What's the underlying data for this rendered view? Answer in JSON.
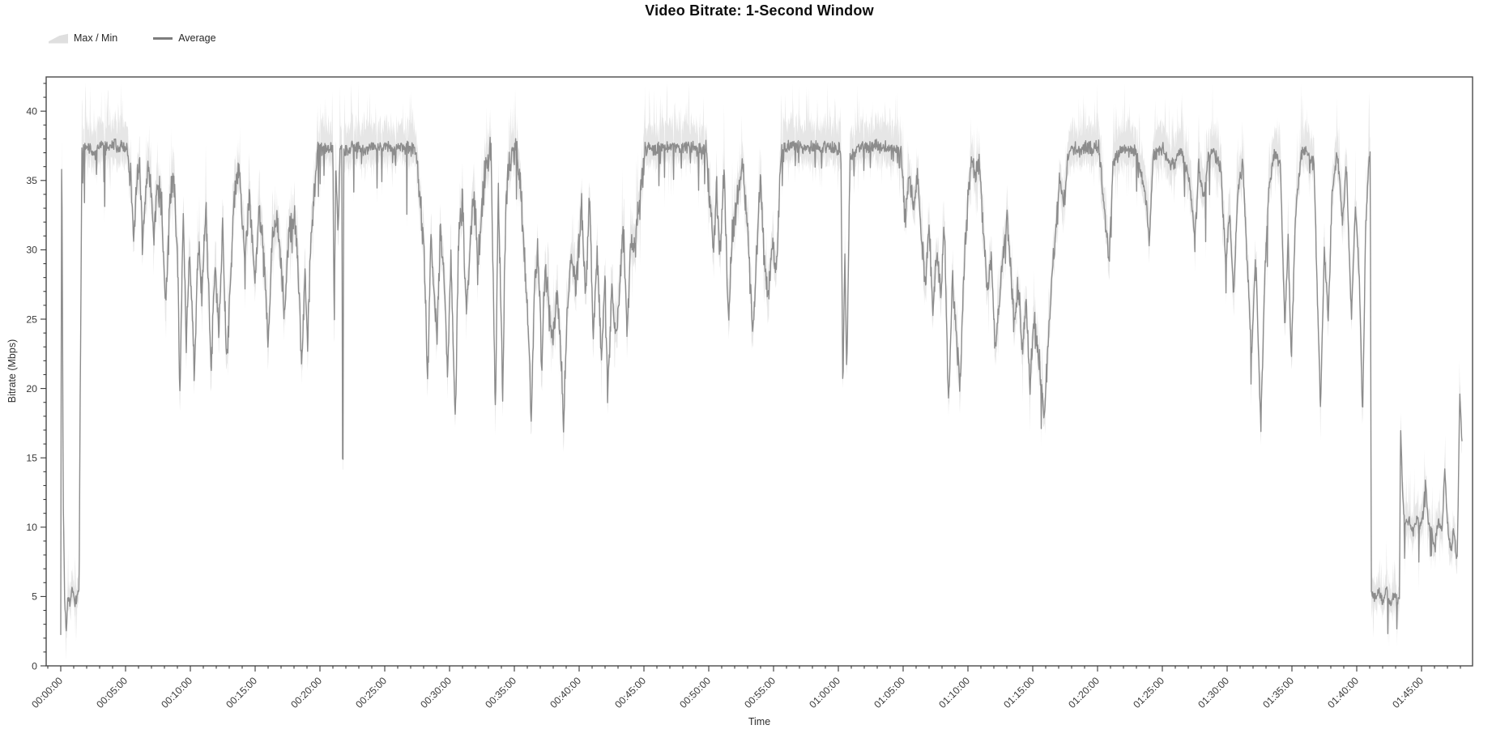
{
  "title": "Video Bitrate: 1-Second Window",
  "legend": {
    "maxmin": "Max / Min",
    "average": "Average"
  },
  "chart_data": {
    "type": "area+line",
    "title": "Video Bitrate: 1-Second Window",
    "xlabel": "Time",
    "ylabel": "Bitrate (Mbps)",
    "ylim": [
      0,
      42.4
    ],
    "xlim_minutes": [
      -1.125,
      108.94
    ],
    "grid": false,
    "legend_position": "top-left",
    "y_major_ticks": [
      0,
      5,
      10,
      15,
      20,
      25,
      30,
      35,
      40
    ],
    "y_minor_step": 1,
    "y_minor_max": 42,
    "x_major_tick_minutes": [
      0,
      5,
      10,
      15,
      20,
      25,
      30,
      35,
      40,
      45,
      50,
      55,
      60,
      65,
      70,
      75,
      80,
      85,
      90,
      95,
      100,
      105
    ],
    "x_tick_labels": [
      "00:00:00",
      "00:05:00",
      "00:10:00",
      "00:15:00",
      "00:20:00",
      "00:25:00",
      "00:30:00",
      "00:35:00",
      "00:40:00",
      "00:45:00",
      "00:50:00",
      "00:55:00",
      "01:00:00",
      "01:05:00",
      "01:10:00",
      "01:15:00",
      "01:20:00",
      "01:25:00",
      "01:30:00",
      "01:35:00",
      "01:40:00",
      "01:45:00"
    ],
    "x_minor_step_minutes": 1,
    "x_minor_range_minutes": [
      -1,
      108
    ],
    "series": [
      {
        "name": "Max / Min",
        "type": "band"
      },
      {
        "name": "Average",
        "type": "line"
      }
    ],
    "colors": {
      "band": "#e3e3e3",
      "line": "#8c8c8c",
      "axis": "#4a4a4a",
      "tick_text": "#3a3a3a",
      "title_text": "#0d0d0d",
      "background": "#ffffff"
    },
    "noise_seed": 42,
    "sample_step_minutes": 0.0333,
    "avg_profile_minutes_mbps": [
      [
        0.0,
        2.2
      ],
      [
        0.07,
        38.4
      ],
      [
        0.12,
        30.0
      ],
      [
        0.18,
        13.0
      ],
      [
        0.3,
        4.8
      ],
      [
        0.42,
        2.3
      ],
      [
        0.55,
        5.2
      ],
      [
        0.7,
        4.6
      ],
      [
        0.9,
        5.4
      ],
      [
        1.1,
        4.7
      ],
      [
        1.3,
        5.1
      ],
      [
        1.42,
        5.3
      ],
      [
        1.5,
        19.5
      ],
      [
        1.56,
        27.0
      ],
      [
        1.63,
        37.2
      ],
      [
        2.0,
        37.5
      ],
      [
        2.6,
        36.8
      ],
      [
        3.1,
        37.6
      ],
      [
        3.6,
        37.2
      ],
      [
        4.1,
        37.6
      ],
      [
        4.6,
        37.3
      ],
      [
        5.1,
        37.5
      ],
      [
        5.4,
        35.0
      ],
      [
        5.6,
        31.0
      ],
      [
        5.85,
        34.5
      ],
      [
        6.1,
        36.5
      ],
      [
        6.3,
        30.5
      ],
      [
        6.55,
        34.0
      ],
      [
        6.8,
        36.0
      ],
      [
        7.0,
        33.5
      ],
      [
        7.2,
        31.0
      ],
      [
        7.5,
        35.0
      ],
      [
        7.8,
        33.0
      ],
      [
        8.1,
        26.0
      ],
      [
        8.4,
        33.5
      ],
      [
        8.7,
        35.5
      ],
      [
        9.0,
        30.0
      ],
      [
        9.2,
        19.2
      ],
      [
        9.45,
        32.0
      ],
      [
        9.7,
        23.5
      ],
      [
        9.95,
        30.0
      ],
      [
        10.3,
        21.0
      ],
      [
        10.6,
        30.5
      ],
      [
        10.9,
        27.0
      ],
      [
        11.2,
        33.0
      ],
      [
        11.6,
        21.2
      ],
      [
        11.9,
        29.0
      ],
      [
        12.2,
        24.0
      ],
      [
        12.5,
        31.5
      ],
      [
        12.8,
        21.5
      ],
      [
        13.1,
        28.0
      ],
      [
        13.4,
        34.5
      ],
      [
        13.8,
        36.0
      ],
      [
        14.2,
        29.0
      ],
      [
        14.55,
        34.0
      ],
      [
        15.0,
        27.5
      ],
      [
        15.3,
        33.5
      ],
      [
        15.6,
        30.0
      ],
      [
        16.0,
        23.5
      ],
      [
        16.35,
        31.0
      ],
      [
        16.7,
        32.5
      ],
      [
        17.0,
        29.5
      ],
      [
        17.3,
        25.0
      ],
      [
        17.6,
        31.5
      ],
      [
        18.0,
        32.5
      ],
      [
        18.3,
        29.0
      ],
      [
        18.6,
        21.5
      ],
      [
        18.85,
        28.5
      ],
      [
        19.05,
        23.0
      ],
      [
        19.25,
        30.0
      ],
      [
        19.5,
        33.0
      ],
      [
        19.8,
        37.3
      ],
      [
        20.5,
        37.4
      ],
      [
        21.0,
        37.2
      ],
      [
        21.1,
        24.0
      ],
      [
        21.22,
        36.0
      ],
      [
        21.4,
        31.0
      ],
      [
        21.55,
        37.2
      ],
      [
        21.69,
        37.3
      ],
      [
        21.76,
        9.0
      ],
      [
        21.84,
        37.2
      ],
      [
        22.5,
        37.4
      ],
      [
        23.5,
        37.3
      ],
      [
        24.5,
        37.5
      ],
      [
        25.5,
        37.3
      ],
      [
        26.5,
        37.4
      ],
      [
        27.4,
        37.2
      ],
      [
        27.8,
        33.0
      ],
      [
        28.05,
        29.5
      ],
      [
        28.3,
        20.0
      ],
      [
        28.55,
        31.0
      ],
      [
        28.8,
        27.0
      ],
      [
        29.05,
        24.0
      ],
      [
        29.3,
        31.5
      ],
      [
        29.6,
        28.0
      ],
      [
        29.85,
        21.0
      ],
      [
        30.1,
        30.0
      ],
      [
        30.45,
        17.3
      ],
      [
        30.7,
        31.0
      ],
      [
        31.0,
        33.5
      ],
      [
        31.3,
        25.5
      ],
      [
        31.6,
        30.5
      ],
      [
        31.9,
        34.0
      ],
      [
        32.2,
        28.8
      ],
      [
        32.5,
        33.0
      ],
      [
        32.8,
        36.5
      ],
      [
        33.2,
        37.2
      ],
      [
        33.55,
        18.0
      ],
      [
        33.75,
        35.0
      ],
      [
        34.1,
        19.5
      ],
      [
        34.35,
        34.0
      ],
      [
        34.7,
        36.8
      ],
      [
        35.1,
        37.2
      ],
      [
        35.5,
        34.0
      ],
      [
        35.8,
        29.0
      ],
      [
        36.05,
        25.5
      ],
      [
        36.3,
        17.5
      ],
      [
        36.55,
        27.0
      ],
      [
        36.8,
        30.5
      ],
      [
        37.1,
        22.0
      ],
      [
        37.4,
        28.5
      ],
      [
        37.7,
        25.0
      ],
      [
        38.0,
        24.0
      ],
      [
        38.3,
        27.5
      ],
      [
        38.55,
        23.0
      ],
      [
        38.8,
        18.0
      ],
      [
        39.1,
        26.0
      ],
      [
        39.4,
        29.5
      ],
      [
        39.7,
        27.0
      ],
      [
        40.2,
        33.0
      ],
      [
        40.5,
        26.0
      ],
      [
        40.8,
        34.0
      ],
      [
        41.1,
        23.5
      ],
      [
        41.4,
        30.0
      ],
      [
        41.7,
        22.0
      ],
      [
        42.0,
        28.0
      ],
      [
        42.2,
        19.5
      ],
      [
        42.5,
        27.0
      ],
      [
        42.8,
        24.0
      ],
      [
        43.1,
        26.5
      ],
      [
        43.4,
        31.5
      ],
      [
        43.7,
        24.5
      ],
      [
        44.0,
        30.0
      ],
      [
        44.3,
        30.3
      ],
      [
        44.6,
        33.0
      ],
      [
        44.9,
        35.2
      ],
      [
        45.1,
        37.4
      ],
      [
        45.8,
        37.3
      ],
      [
        46.6,
        37.5
      ],
      [
        47.4,
        37.3
      ],
      [
        48.2,
        37.4
      ],
      [
        49.0,
        37.3
      ],
      [
        49.8,
        37.4
      ],
      [
        50.1,
        33.0
      ],
      [
        50.35,
        30.0
      ],
      [
        50.6,
        34.5
      ],
      [
        50.9,
        29.5
      ],
      [
        51.2,
        36.0
      ],
      [
        51.5,
        24.5
      ],
      [
        51.8,
        31.0
      ],
      [
        52.1,
        33.0
      ],
      [
        52.6,
        36.5
      ],
      [
        53.0,
        31.5
      ],
      [
        53.4,
        23.3
      ],
      [
        53.7,
        30.0
      ],
      [
        54.0,
        35.0
      ],
      [
        54.3,
        29.0
      ],
      [
        54.6,
        26.7
      ],
      [
        54.9,
        31.0
      ],
      [
        55.2,
        28.5
      ],
      [
        55.6,
        37.2
      ],
      [
        56.3,
        37.4
      ],
      [
        57.1,
        37.3
      ],
      [
        57.9,
        37.4
      ],
      [
        58.7,
        37.3
      ],
      [
        59.4,
        37.4
      ],
      [
        60.0,
        37.2
      ],
      [
        60.2,
        37.0
      ],
      [
        60.35,
        19.5
      ],
      [
        60.5,
        30.0
      ],
      [
        60.65,
        21.0
      ],
      [
        60.9,
        36.5
      ],
      [
        61.5,
        37.4
      ],
      [
        62.3,
        37.3
      ],
      [
        63.1,
        37.5
      ],
      [
        63.9,
        37.3
      ],
      [
        64.6,
        37.2
      ],
      [
        64.9,
        36.5
      ],
      [
        65.1,
        32.5
      ],
      [
        65.4,
        35.5
      ],
      [
        65.8,
        33.0
      ],
      [
        66.1,
        36.0
      ],
      [
        66.4,
        31.0
      ],
      [
        66.7,
        27.5
      ],
      [
        67.0,
        32.0
      ],
      [
        67.3,
        25.5
      ],
      [
        67.6,
        30.5
      ],
      [
        67.9,
        27.0
      ],
      [
        68.2,
        31.5
      ],
      [
        68.5,
        18.5
      ],
      [
        68.8,
        28.0
      ],
      [
        69.1,
        24.0
      ],
      [
        69.4,
        20.0
      ],
      [
        69.7,
        29.0
      ],
      [
        70.0,
        33.5
      ],
      [
        70.3,
        36.8
      ],
      [
        70.6,
        35.5
      ],
      [
        70.9,
        36.8
      ],
      [
        71.2,
        31.0
      ],
      [
        71.5,
        27.0
      ],
      [
        71.8,
        29.5
      ],
      [
        72.1,
        23.0
      ],
      [
        72.4,
        26.0
      ],
      [
        72.7,
        29.5
      ],
      [
        73.0,
        33.0
      ],
      [
        73.3,
        28.5
      ],
      [
        73.6,
        25.0
      ],
      [
        73.9,
        27.5
      ],
      [
        74.2,
        22.5
      ],
      [
        74.5,
        26.5
      ],
      [
        74.8,
        20.5
      ],
      [
        75.1,
        25.0
      ],
      [
        75.4,
        23.0
      ],
      [
        75.9,
        17.6
      ],
      [
        76.2,
        24.0
      ],
      [
        76.5,
        28.0
      ],
      [
        76.8,
        31.5
      ],
      [
        77.1,
        35.0
      ],
      [
        77.4,
        33.0
      ],
      [
        77.8,
        37.2
      ],
      [
        78.5,
        37.3
      ],
      [
        79.3,
        37.2
      ],
      [
        80.1,
        37.4
      ],
      [
        80.9,
        29.0
      ],
      [
        81.2,
        36.5
      ],
      [
        82.0,
        37.3
      ],
      [
        83.0,
        37.2
      ],
      [
        83.7,
        34.0
      ],
      [
        84.0,
        30.5
      ],
      [
        84.3,
        36.8
      ],
      [
        85.0,
        37.3
      ],
      [
        85.7,
        36.0
      ],
      [
        86.4,
        37.3
      ],
      [
        87.1,
        35.0
      ],
      [
        87.5,
        31.0
      ],
      [
        87.8,
        36.0
      ],
      [
        88.2,
        33.5
      ],
      [
        88.5,
        36.5
      ],
      [
        89.0,
        37.2
      ],
      [
        89.5,
        36.0
      ],
      [
        89.9,
        29.0
      ],
      [
        90.2,
        33.0
      ],
      [
        90.5,
        26.5
      ],
      [
        90.8,
        34.0
      ],
      [
        91.2,
        36.5
      ],
      [
        91.6,
        28.0
      ],
      [
        91.9,
        22.5
      ],
      [
        92.2,
        30.0
      ],
      [
        92.6,
        16.9
      ],
      [
        92.9,
        28.0
      ],
      [
        93.2,
        34.0
      ],
      [
        93.6,
        37.0
      ],
      [
        94.1,
        36.5
      ],
      [
        94.45,
        24.0
      ],
      [
        94.7,
        31.0
      ],
      [
        94.95,
        22.0
      ],
      [
        95.3,
        33.0
      ],
      [
        95.7,
        36.8
      ],
      [
        96.2,
        37.2
      ],
      [
        96.7,
        36.0
      ],
      [
        97.2,
        18.6
      ],
      [
        97.5,
        30.0
      ],
      [
        97.8,
        25.0
      ],
      [
        98.1,
        34.0
      ],
      [
        98.5,
        37.0
      ],
      [
        98.9,
        32.0
      ],
      [
        99.2,
        36.0
      ],
      [
        99.6,
        25.0
      ],
      [
        99.9,
        33.5
      ],
      [
        100.2,
        28.0
      ],
      [
        100.45,
        18.0
      ],
      [
        100.7,
        32.0
      ],
      [
        100.95,
        36.5
      ],
      [
        101.05,
        37.0
      ],
      [
        101.12,
        5.5
      ],
      [
        101.4,
        4.8
      ],
      [
        101.7,
        5.3
      ],
      [
        102.0,
        4.6
      ],
      [
        102.3,
        5.5
      ],
      [
        102.6,
        4.4
      ],
      [
        102.9,
        5.2
      ],
      [
        103.15,
        4.6
      ],
      [
        103.3,
        5.0
      ],
      [
        103.38,
        17.5
      ],
      [
        103.55,
        12.0
      ],
      [
        103.75,
        10.2
      ],
      [
        104.0,
        10.5
      ],
      [
        104.3,
        9.8
      ],
      [
        104.6,
        10.6
      ],
      [
        104.9,
        10.0
      ],
      [
        105.15,
        11.0
      ],
      [
        105.3,
        13.5
      ],
      [
        105.5,
        10.3
      ],
      [
        105.8,
        9.7
      ],
      [
        106.0,
        8.6
      ],
      [
        106.3,
        10.4
      ],
      [
        106.6,
        10.0
      ],
      [
        106.8,
        14.5
      ],
      [
        107.0,
        10.2
      ],
      [
        107.3,
        8.2
      ],
      [
        107.5,
        10.0
      ],
      [
        107.75,
        7.2
      ],
      [
        107.95,
        19.8
      ],
      [
        108.15,
        15.5
      ]
    ],
    "noise_segments": [
      {
        "t0": 0.0,
        "t1": 1.45,
        "amp": 0.5,
        "band_up": 1.6,
        "band_dn": 1.5
      },
      {
        "t0": 1.45,
        "t1": 5.2,
        "amp": 0.6,
        "band_up": 2.7,
        "band_dn": 1.9
      },
      {
        "t0": 5.2,
        "t1": 19.7,
        "amp": 1.4,
        "band_up": 2.4,
        "band_dn": 2.1
      },
      {
        "t0": 19.7,
        "t1": 27.5,
        "amp": 0.6,
        "band_up": 2.7,
        "band_dn": 1.8
      },
      {
        "t0": 27.5,
        "t1": 45.0,
        "amp": 1.5,
        "band_up": 2.3,
        "band_dn": 2.1
      },
      {
        "t0": 45.0,
        "t1": 49.9,
        "amp": 0.6,
        "band_up": 2.7,
        "band_dn": 1.8
      },
      {
        "t0": 49.9,
        "t1": 55.5,
        "amp": 1.3,
        "band_up": 2.3,
        "band_dn": 2.0
      },
      {
        "t0": 55.5,
        "t1": 64.7,
        "amp": 0.6,
        "band_up": 2.7,
        "band_dn": 1.8
      },
      {
        "t0": 64.7,
        "t1": 77.7,
        "amp": 1.3,
        "band_up": 2.2,
        "band_dn": 2.0
      },
      {
        "t0": 77.7,
        "t1": 101.1,
        "amp": 0.7,
        "band_up": 2.6,
        "band_dn": 1.9
      },
      {
        "t0": 101.1,
        "t1": 103.35,
        "amp": 0.45,
        "band_up": 1.7,
        "band_dn": 1.6
      },
      {
        "t0": 103.35,
        "t1": 108.2,
        "amp": 0.5,
        "band_up": 1.9,
        "band_dn": 1.7
      }
    ]
  }
}
